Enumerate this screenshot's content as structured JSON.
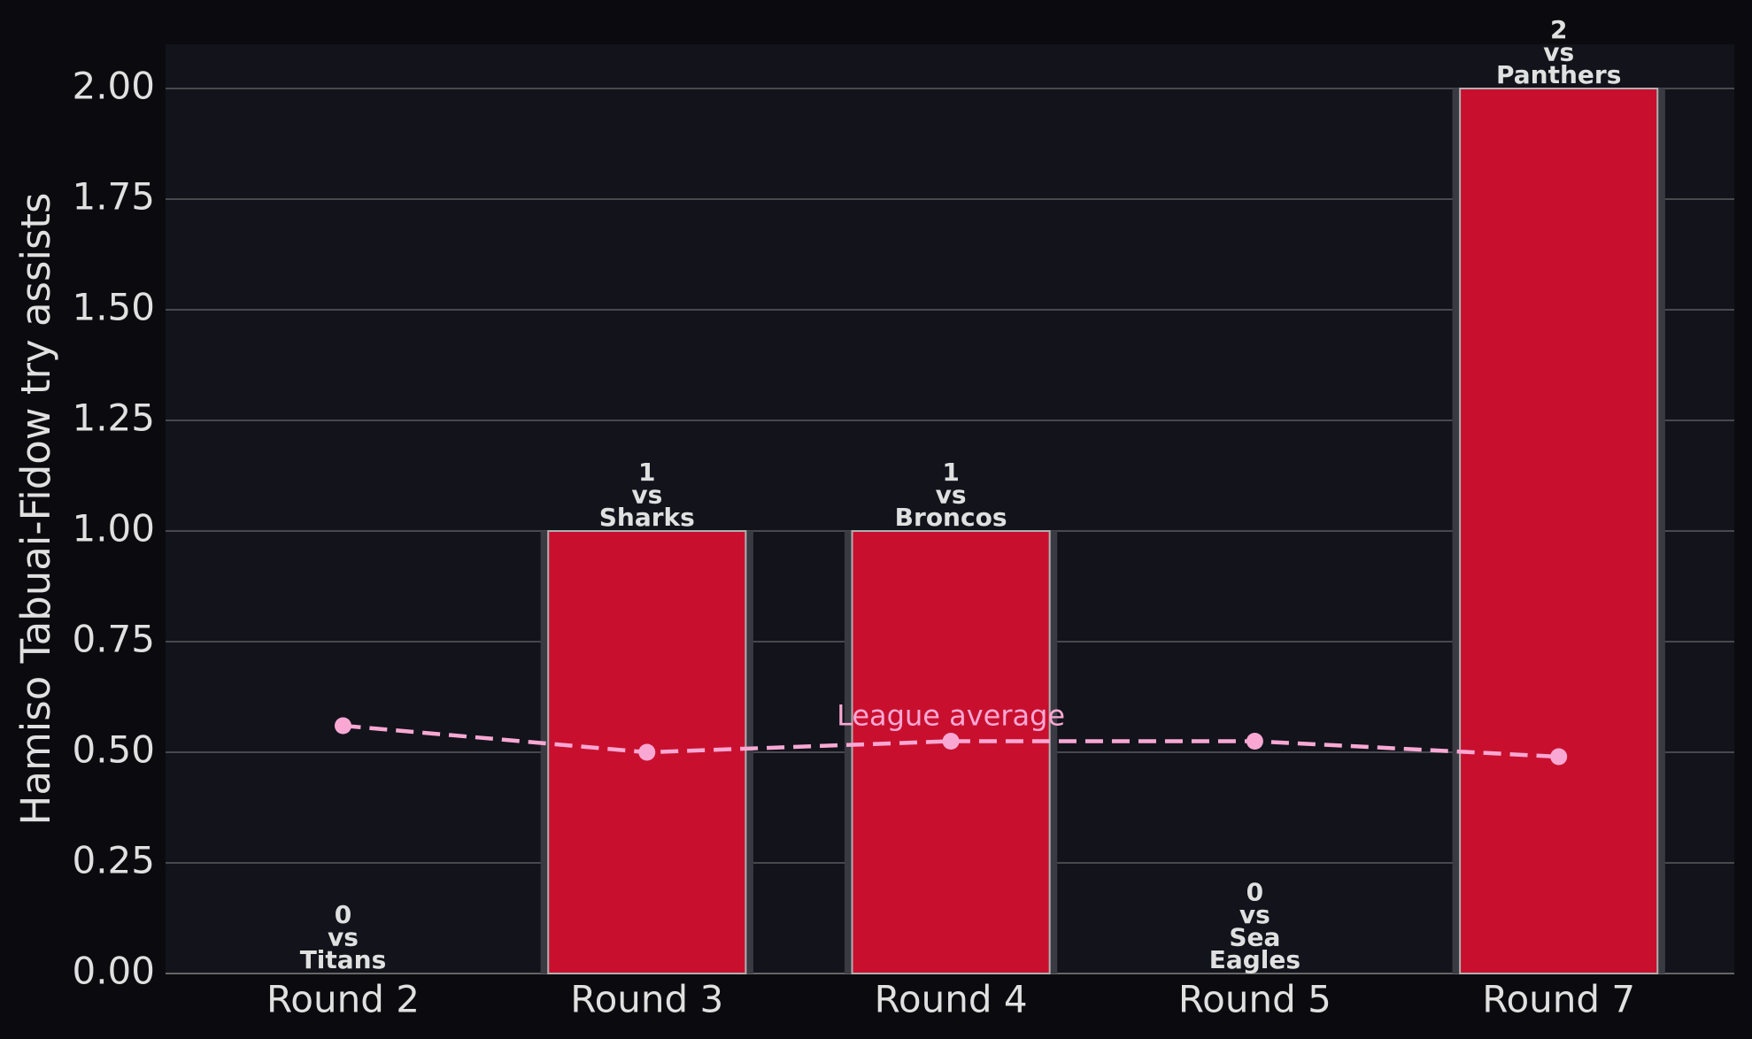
{
  "chart_data": {
    "type": "bar",
    "y_label": "Hamiso Tabuai-Fidow try assists",
    "categories": [
      "Round 2",
      "Round 3",
      "Round 4",
      "Round 5",
      "Round 7"
    ],
    "values": [
      0,
      1,
      1,
      0,
      2
    ],
    "value_labels": [
      "0\nvs\nTitans",
      "1\nvs\nSharks",
      "1\nvs\nBroncos",
      "0\nvs\nSea\nEagles",
      "2\nvs\nPanthers"
    ],
    "color": "#c8102e",
    "average": {
      "name": "League average",
      "color": "#f9a8d4",
      "values": [
        0.56,
        0.5,
        0.525,
        0.525,
        0.49
      ]
    },
    "ylim": [
      0,
      2.1
    ],
    "yticks": [
      {
        "value": 0,
        "label": "0.00"
      },
      {
        "value": 0.25,
        "label": "0.25"
      },
      {
        "value": 0.5,
        "label": "0.50"
      },
      {
        "value": 0.75,
        "label": "0.75"
      },
      {
        "value": 1,
        "label": "1.00"
      },
      {
        "value": 1.25,
        "label": "1.25"
      },
      {
        "value": 1.5,
        "label": "1.50"
      },
      {
        "value": 1.75,
        "label": "1.75"
      },
      {
        "value": 2,
        "label": "2.00"
      }
    ],
    "grid": true
  }
}
